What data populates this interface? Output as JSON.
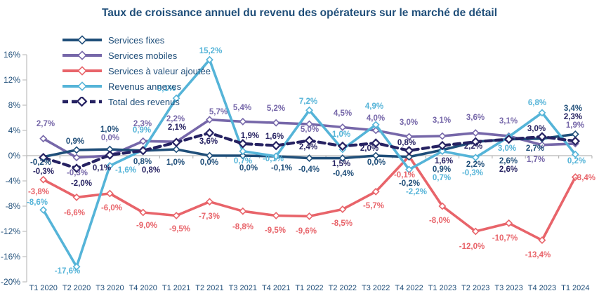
{
  "title": "Taux de croissance annuel du revenu des opérateurs sur le marché de détail",
  "chart_data": {
    "type": "line",
    "title": "Taux de croissance annuel du revenu des opérateurs sur le marché de détail",
    "unit": "%",
    "legend_position": "top-left",
    "grid": "zero-axis-only",
    "categories": [
      "T1 2020",
      "T2 2020",
      "T3 2020",
      "T4 2020",
      "T1 2021",
      "T2 2021",
      "T3 2021",
      "T4 2021",
      "T1 2022",
      "T2 2022",
      "T3 2022",
      "T4 2022",
      "T1 2023",
      "T2 2023",
      "T3 2023",
      "T4 2023",
      "T1 2024"
    ],
    "y_axis": {
      "min": -20,
      "max": 16,
      "step": 4,
      "ticks": [
        "16%",
        "12%",
        "8%",
        "4%",
        "0%",
        "-4%",
        "-8%",
        "-12%",
        "-16%",
        "-20%"
      ]
    },
    "series": [
      {
        "name": "Services fixes",
        "color": "#1F4E79",
        "style": "solid",
        "values": [
          -0.2,
          0.9,
          1.0,
          0.8,
          1.0,
          0.0,
          0.0,
          -0.1,
          -0.4,
          -0.4,
          0.0,
          -0.2,
          0.9,
          2.2,
          2.6,
          2.7,
          3.4
        ],
        "labels": [
          "-0,2%",
          "0,9%",
          "1,0%",
          "0,8%",
          "1,0%",
          "0,0%",
          "0,0%",
          "-0,1%",
          "-0,4%",
          "-0,4%",
          "0,0%",
          "-0,2%",
          "0,9%",
          "2,2%",
          "2,6%",
          "2,7%",
          "3,4%"
        ]
      },
      {
        "name": "Services mobiles",
        "color": "#7667A9",
        "style": "solid",
        "values": [
          2.7,
          -0.3,
          0.0,
          2.3,
          2.2,
          5.7,
          5.4,
          5.2,
          5.0,
          4.5,
          4.0,
          3.0,
          3.1,
          3.6,
          3.1,
          1.7,
          1.9
        ],
        "labels": [
          "2,7%",
          "-0,3%",
          "0,0%",
          "2,3%",
          "2,2%",
          "5,7%",
          "5,4%",
          "5,2%",
          "5,0%",
          "4,5%",
          "4,0%",
          "3,0%",
          "3,1%",
          "3,6%",
          "3,1%",
          "1,7%",
          "1,9%"
        ]
      },
      {
        "name": "Services à valeur ajoutée",
        "color": "#E8646A",
        "style": "solid",
        "values": [
          -3.8,
          -6.6,
          -6.0,
          -9.0,
          -9.5,
          -7.3,
          -8.8,
          -9.5,
          -9.6,
          -8.5,
          -5.7,
          -0.1,
          -8.0,
          -12.0,
          -10.7,
          -13.4,
          -3.4
        ],
        "labels": [
          "-3,8%",
          "-6,6%",
          "-6,0%",
          "-9,0%",
          "-9,5%",
          "-7,3%",
          "-8,8%",
          "-9,5%",
          "-9,6%",
          "-8,5%",
          "-5,7%",
          "-0,1%",
          "-8,0%",
          "-12,0%",
          "-10,7%",
          "-13,4%",
          "-3,4%"
        ]
      },
      {
        "name": "Revenus annexes",
        "color": "#55B4D8",
        "style": "solid",
        "values": [
          -8.6,
          -17.6,
          -1.6,
          0.9,
          9.1,
          15.2,
          0.7,
          -0.1,
          7.2,
          1.0,
          4.9,
          -2.2,
          0.7,
          -0.3,
          3.0,
          6.8,
          0.2
        ],
        "labels": [
          "-8,6%",
          "-17,6%",
          "-1,6%",
          "0,9%",
          "9,1%",
          "15,2%",
          "0,7%",
          "-0,1%",
          "7,2%",
          "1,0%",
          "4,9%",
          "-2,2%",
          "0,7%",
          "-0,3%",
          "3,0%",
          "6,8%",
          "0,2%"
        ]
      },
      {
        "name": "Total des revenus",
        "color": "#262262",
        "style": "dashed",
        "values": [
          -0.3,
          -2.0,
          0.1,
          0.8,
          2.1,
          3.6,
          1.9,
          1.6,
          2.4,
          1.5,
          2.0,
          0.8,
          1.6,
          2.2,
          2.6,
          3.0,
          2.3
        ],
        "labels": [
          "-0,3%",
          "-2,0%",
          "0,1%",
          "0,8%",
          "2,1%",
          "3,6%",
          "1,9%",
          "1,6%",
          "2,4%",
          "1,5%",
          "2,0%",
          "0,8%",
          "1,6%",
          "2,2%",
          "2,6%",
          "3,0%",
          "2,3%"
        ]
      }
    ]
  }
}
